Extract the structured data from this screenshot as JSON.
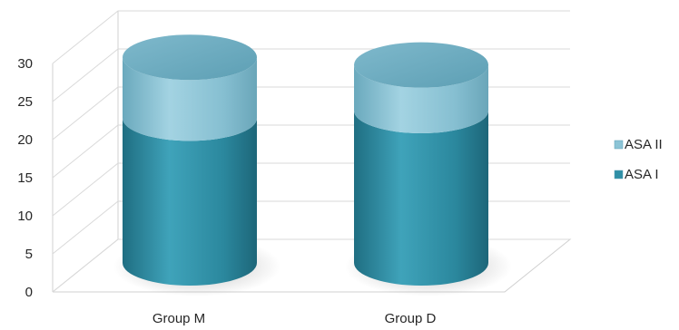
{
  "chart_data": {
    "type": "bar",
    "style": "3d-stacked-cylinder",
    "categories": [
      "Group M",
      "Group D"
    ],
    "series": [
      {
        "name": "ASA I",
        "values": [
          19,
          20
        ],
        "color": "#2f8fa6"
      },
      {
        "name": "ASA II",
        "values": [
          8,
          6
        ],
        "color": "#8cc4d6"
      }
    ],
    "ylim": [
      0,
      30
    ],
    "yticks": [
      "0",
      "5",
      "10",
      "15",
      "20",
      "25",
      "30"
    ],
    "grid": true,
    "legend_placement": "right",
    "legend_order": [
      "ASA II",
      "ASA I"
    ],
    "title": "",
    "xlabel": "",
    "ylabel": ""
  }
}
